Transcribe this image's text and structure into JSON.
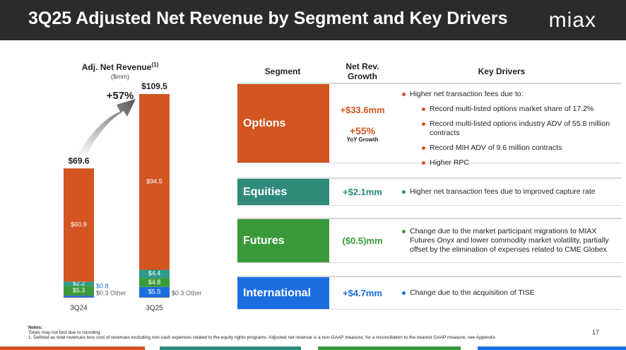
{
  "header": {
    "title": "3Q25 Adjusted Net Revenue by Segment and Key Drivers",
    "logo": "miax"
  },
  "chart_data": {
    "type": "bar",
    "stacked": true,
    "title": "Adj. Net Revenue",
    "title_note": "(1)",
    "subtitle": "($mm)",
    "annotation": "+57%",
    "categories": [
      "3Q24",
      "3Q25"
    ],
    "totals": [
      "$69.6",
      "$109.5"
    ],
    "series": [
      {
        "name": "Other",
        "color": "#555555",
        "values": [
          0.3,
          0.3
        ],
        "value_labels": [
          "$0.3",
          "$0.3"
        ]
      },
      {
        "name": "International",
        "color": "#1a6fe0",
        "values": [
          0.8,
          5.5
        ],
        "value_labels": [
          "$0.8",
          "$5.5"
        ]
      },
      {
        "name": "Futures",
        "color": "#3a9a3a",
        "values": [
          5.3,
          4.8
        ],
        "value_labels": [
          "$5.3",
          "$4.8"
        ]
      },
      {
        "name": "Equities",
        "color": "#2e9a8c",
        "values": [
          2.2,
          4.4
        ],
        "value_labels": [
          "$2.2",
          "$4.4"
        ]
      },
      {
        "name": "Options",
        "color": "#d35521",
        "values": [
          60.9,
          94.5
        ],
        "value_labels": [
          "$60.9",
          "$94.5"
        ]
      }
    ]
  },
  "table": {
    "headers": [
      "Segment",
      "Net Rev. Growth",
      "Key Drivers"
    ],
    "rows": [
      {
        "segment": "Options",
        "color": "#d35521",
        "growth": "+$33.6mm",
        "growth_pct": "+55%",
        "growth_note": "YoY Growth",
        "drivers": [
          "Higher net transaction fees due to:"
        ],
        "sub_drivers": [
          "Record multi-listed options market share of 17.2%",
          "Record multi-listed options industry ADV of 55.8 million contracts",
          "Record MIH ADV of 9.6 million contracts",
          "Higher RPC"
        ]
      },
      {
        "segment": "Equities",
        "color": "#2e8b7a",
        "growth": "+$2.1mm",
        "drivers": [
          "Higher net transaction fees due to improved capture rate"
        ]
      },
      {
        "segment": "Futures",
        "color": "#3a9a3a",
        "growth": "($0.5)mm",
        "drivers": [
          "Change due to the market participant migrations to MIAX Futures Onyx and lower commodity market volatility, partially offset by the elimination of expenses related to CME Globex"
        ]
      },
      {
        "segment": "International",
        "color": "#1a6fe0",
        "growth": "+$4.7mm",
        "drivers": [
          "Change due to the acquisition of TISE"
        ]
      }
    ]
  },
  "notes": {
    "heading": "Notes:",
    "lines": [
      "Totals may not foot due to rounding",
      "1.    Defined as total revenues less cost of revenues excluding non-cash expenses related to the equity rights programs. Adjusted net revenue is a non-GAAP measure; for a reconciliation to the nearest GAAP measure, see Appendix"
    ]
  },
  "page_number": "17"
}
